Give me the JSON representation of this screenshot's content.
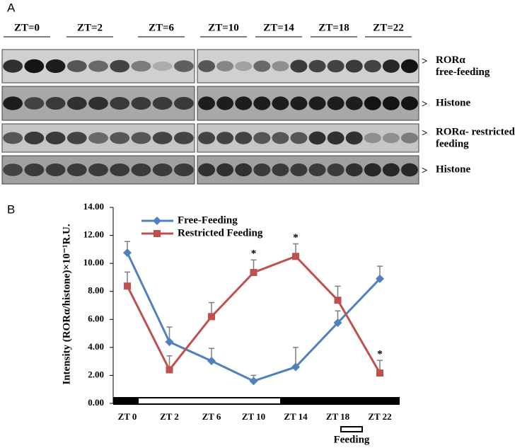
{
  "panel_a": {
    "letter": "A",
    "zt_labels": [
      "ZT=0",
      "ZT=2",
      "ZT=6",
      "ZT=10",
      "ZT=14",
      "ZT=18",
      "ZT=22"
    ],
    "rows": [
      {
        "label_lines": [
          "RORα",
          "free-feeding"
        ]
      },
      {
        "label_lines": [
          "Histone"
        ]
      },
      {
        "label_lines": [
          "RORα- restricted",
          "feeding"
        ]
      },
      {
        "label_lines": [
          "Histone"
        ]
      }
    ]
  },
  "chart_data": {
    "type": "line",
    "panel_letter": "B",
    "y_label": "Intensity (RORα/histone)×10⁻¹R.U.",
    "categories": [
      "ZT 0",
      "ZT 2",
      "ZT 6",
      "ZT 10",
      "ZT 14",
      "ZT 18",
      "ZT 22"
    ],
    "series": [
      {
        "name": "Free-Feeding",
        "color": "#4f81bd",
        "marker": "diamond",
        "values": [
          10.76,
          4.39,
          3.03,
          1.6,
          2.6,
          5.76,
          8.9
        ],
        "errors": [
          0.8,
          1.06,
          0.9,
          0.4,
          1.4,
          0.85,
          0.9
        ]
      },
      {
        "name": "Restricted Feeding",
        "color": "#c0504d",
        "marker": "square",
        "values": [
          8.38,
          2.4,
          6.2,
          9.35,
          10.5,
          7.37,
          2.17
        ],
        "errors": [
          1.0,
          1.0,
          1.0,
          0.9,
          0.9,
          1.0,
          0.9
        ],
        "significance": [
          null,
          null,
          null,
          "*",
          "*",
          null,
          "*"
        ]
      }
    ],
    "ylim": [
      0,
      14
    ],
    "yticks": [
      {
        "value": 0,
        "label": "0.00"
      },
      {
        "value": 2,
        "label": "2.00"
      },
      {
        "value": 4,
        "label": "4.00"
      },
      {
        "value": 6,
        "label": "6.00"
      },
      {
        "value": 8,
        "label": "8.00"
      },
      {
        "value": 10,
        "label": "10.00"
      },
      {
        "value": 12,
        "label": "12.00"
      },
      {
        "value": 14,
        "label": "14.00"
      }
    ],
    "feeding_label": "Feeding"
  }
}
